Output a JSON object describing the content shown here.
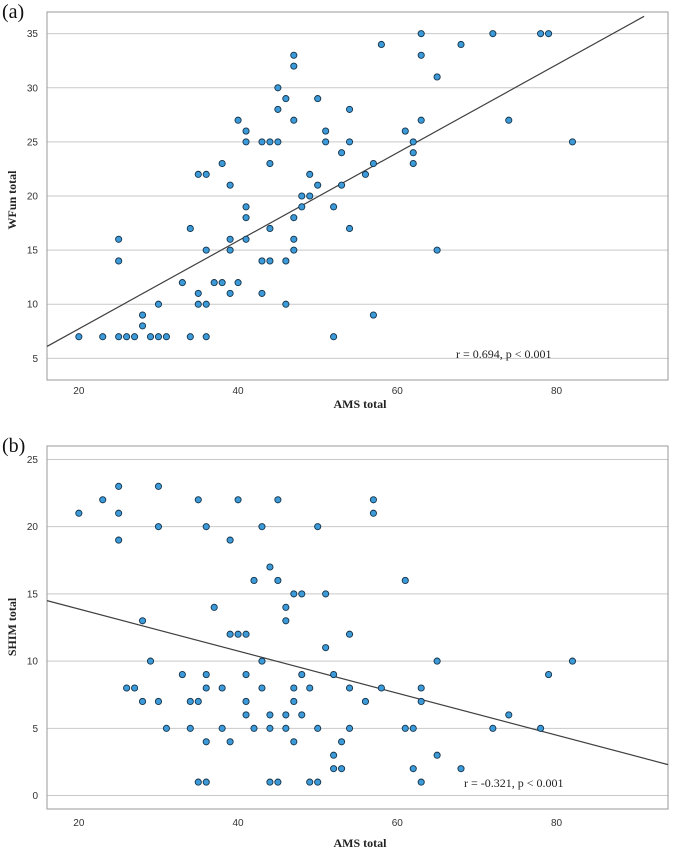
{
  "chart_data": [
    {
      "type": "scatter",
      "panel": "(a)",
      "xlabel": "AMS total",
      "ylabel": "WFun total",
      "xlim": [
        16,
        94
      ],
      "ylim": [
        3,
        37
      ],
      "xticks": [
        20,
        40,
        60,
        80
      ],
      "yticks": [
        5,
        10,
        15,
        20,
        25,
        30,
        35
      ],
      "grid": "horizontal",
      "annotation": "r = 0.694, p < 0.001",
      "fit_line": [
        [
          16,
          6.1
        ],
        [
          91,
          36.6
        ]
      ],
      "points": [
        [
          20,
          7
        ],
        [
          23,
          7
        ],
        [
          25,
          7
        ],
        [
          26,
          7
        ],
        [
          27,
          7
        ],
        [
          29,
          7
        ],
        [
          30,
          7
        ],
        [
          31,
          7
        ],
        [
          34,
          7
        ],
        [
          36,
          7
        ],
        [
          52,
          7
        ],
        [
          28,
          8
        ],
        [
          28,
          9
        ],
        [
          57,
          9
        ],
        [
          30,
          10
        ],
        [
          35,
          10
        ],
        [
          36,
          10
        ],
        [
          46,
          10
        ],
        [
          35,
          11
        ],
        [
          39,
          11
        ],
        [
          43,
          11
        ],
        [
          33,
          12
        ],
        [
          37,
          12
        ],
        [
          38,
          12
        ],
        [
          40,
          12
        ],
        [
          44,
          14
        ],
        [
          43,
          14
        ],
        [
          46,
          14
        ],
        [
          25,
          14
        ],
        [
          36,
          15
        ],
        [
          39,
          15
        ],
        [
          47,
          15
        ],
        [
          65,
          15
        ],
        [
          25,
          16
        ],
        [
          39,
          16
        ],
        [
          41,
          16
        ],
        [
          47,
          16
        ],
        [
          34,
          17
        ],
        [
          44,
          17
        ],
        [
          54,
          17
        ],
        [
          41,
          18
        ],
        [
          47,
          18
        ],
        [
          41,
          19
        ],
        [
          48,
          19
        ],
        [
          52,
          19
        ],
        [
          48,
          20
        ],
        [
          49,
          20
        ],
        [
          50,
          21
        ],
        [
          53,
          21
        ],
        [
          39,
          21
        ],
        [
          35,
          22
        ],
        [
          36,
          22
        ],
        [
          49,
          22
        ],
        [
          56,
          22
        ],
        [
          38,
          23
        ],
        [
          44,
          23
        ],
        [
          57,
          23
        ],
        [
          62,
          23
        ],
        [
          53,
          24
        ],
        [
          62,
          24
        ],
        [
          43,
          25
        ],
        [
          44,
          25
        ],
        [
          45,
          25
        ],
        [
          51,
          25
        ],
        [
          54,
          25
        ],
        [
          41,
          25
        ],
        [
          62,
          25
        ],
        [
          82,
          25
        ],
        [
          41,
          26
        ],
        [
          51,
          26
        ],
        [
          61,
          26
        ],
        [
          40,
          27
        ],
        [
          47,
          27
        ],
        [
          63,
          27
        ],
        [
          74,
          27
        ],
        [
          45,
          28
        ],
        [
          54,
          28
        ],
        [
          46,
          29
        ],
        [
          50,
          29
        ],
        [
          45,
          30
        ],
        [
          65,
          31
        ],
        [
          47,
          32
        ],
        [
          47,
          33
        ],
        [
          63,
          33
        ],
        [
          58,
          34
        ],
        [
          68,
          34
        ],
        [
          63,
          35
        ],
        [
          72,
          35
        ],
        [
          78,
          35
        ],
        [
          79,
          35
        ]
      ]
    },
    {
      "type": "scatter",
      "panel": "(b)",
      "xlabel": "AMS total",
      "ylabel": "SHIM total",
      "xlim": [
        16,
        94
      ],
      "ylim": [
        -1,
        26
      ],
      "xticks": [
        20,
        40,
        60,
        80
      ],
      "yticks": [
        0,
        5,
        10,
        15,
        20,
        25
      ],
      "grid": "horizontal",
      "annotation": "r = -0.321, p < 0.001",
      "fit_line": [
        [
          16,
          14.5
        ],
        [
          94,
          2.3
        ]
      ],
      "points": [
        [
          20,
          21
        ],
        [
          23,
          22
        ],
        [
          25,
          23
        ],
        [
          25,
          21
        ],
        [
          25,
          19
        ],
        [
          30,
          23
        ],
        [
          30,
          20
        ],
        [
          35,
          22
        ],
        [
          36,
          20
        ],
        [
          39,
          19
        ],
        [
          40,
          22
        ],
        [
          43,
          20
        ],
        [
          45,
          22
        ],
        [
          50,
          20
        ],
        [
          57,
          22
        ],
        [
          57,
          21
        ],
        [
          44,
          17
        ],
        [
          42,
          16
        ],
        [
          45,
          16
        ],
        [
          61,
          16
        ],
        [
          37,
          14
        ],
        [
          46,
          14
        ],
        [
          46,
          13
        ],
        [
          47,
          15
        ],
        [
          48,
          15
        ],
        [
          51,
          15
        ],
        [
          28,
          13
        ],
        [
          39,
          12
        ],
        [
          40,
          12
        ],
        [
          41,
          12
        ],
        [
          54,
          12
        ],
        [
          51,
          11
        ],
        [
          29,
          10
        ],
        [
          43,
          10
        ],
        [
          65,
          10
        ],
        [
          82,
          10
        ],
        [
          79,
          9
        ],
        [
          33,
          9
        ],
        [
          36,
          9
        ],
        [
          41,
          9
        ],
        [
          48,
          9
        ],
        [
          52,
          9
        ],
        [
          26,
          8
        ],
        [
          27,
          8
        ],
        [
          36,
          8
        ],
        [
          38,
          8
        ],
        [
          43,
          8
        ],
        [
          47,
          8
        ],
        [
          49,
          8
        ],
        [
          54,
          8
        ],
        [
          58,
          8
        ],
        [
          63,
          8
        ],
        [
          28,
          7
        ],
        [
          30,
          7
        ],
        [
          34,
          7
        ],
        [
          35,
          7
        ],
        [
          41,
          7
        ],
        [
          47,
          7
        ],
        [
          56,
          7
        ],
        [
          63,
          7
        ],
        [
          46,
          6
        ],
        [
          41,
          6
        ],
        [
          44,
          6
        ],
        [
          48,
          6
        ],
        [
          74,
          6
        ],
        [
          31,
          5
        ],
        [
          34,
          5
        ],
        [
          38,
          5
        ],
        [
          42,
          5
        ],
        [
          44,
          5
        ],
        [
          46,
          5
        ],
        [
          50,
          5
        ],
        [
          54,
          5
        ],
        [
          61,
          5
        ],
        [
          62,
          5
        ],
        [
          72,
          5
        ],
        [
          78,
          5
        ],
        [
          36,
          4
        ],
        [
          39,
          4
        ],
        [
          47,
          4
        ],
        [
          53,
          4
        ],
        [
          65,
          3
        ],
        [
          52,
          3
        ],
        [
          52,
          2
        ],
        [
          53,
          2
        ],
        [
          62,
          2
        ],
        [
          68,
          2
        ],
        [
          35,
          1
        ],
        [
          36,
          1
        ],
        [
          44,
          1
        ],
        [
          45,
          1
        ],
        [
          49,
          1
        ],
        [
          50,
          1
        ],
        [
          63,
          1
        ]
      ]
    }
  ]
}
